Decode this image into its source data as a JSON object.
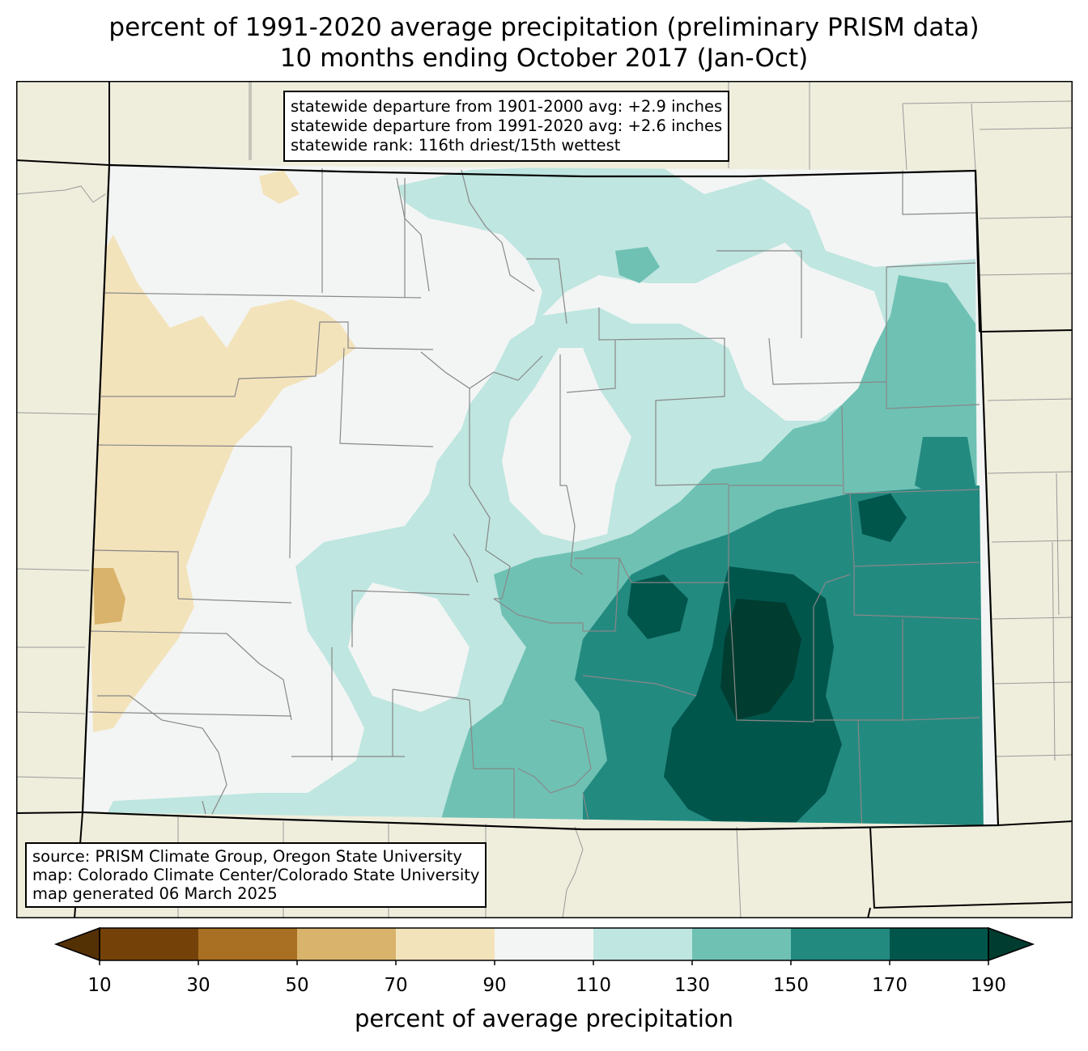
{
  "title": {
    "line1": "percent of 1991-2020 average precipitation (preliminary PRISM data)",
    "line2": "10 months ending October 2017 (Jan-Oct)"
  },
  "stats_box": {
    "line1": "statewide departure from 1901-2000 avg: +2.9 inches",
    "line2": "statewide departure from 1991-2020 avg: +2.6 inches",
    "line3": "statewide rank: 116th driest/15th wettest"
  },
  "source_box": {
    "line1": "source: PRISM Climate Group, Oregon State University",
    "line2": "map: Colorado Climate Center/Colorado State University",
    "line3": "map generated 06 March 2025"
  },
  "colorbar": {
    "label": "percent of average precipitation",
    "ticks": [
      "10",
      "30",
      "50",
      "70",
      "90",
      "110",
      "130",
      "150",
      "170",
      "190"
    ],
    "under_color": "#543005",
    "over_color": "#003c30",
    "bins": [
      {
        "range": "10-30",
        "color": "#744208"
      },
      {
        "range": "30-50",
        "color": "#a96f23"
      },
      {
        "range": "50-70",
        "color": "#d9b36b"
      },
      {
        "range": "70-90",
        "color": "#f3e3bb"
      },
      {
        "range": "90-110",
        "color": "#f3f5f4"
      },
      {
        "range": "110-130",
        "color": "#bfe6e0"
      },
      {
        "range": "130-150",
        "color": "#6fc1b4"
      },
      {
        "range": "150-170",
        "color": "#238a80"
      },
      {
        "range": "170-190",
        "color": "#01564c"
      }
    ]
  },
  "colors": {
    "outside_state": "#efeedc",
    "county_lines": "#888888",
    "state_border": "#000000"
  }
}
